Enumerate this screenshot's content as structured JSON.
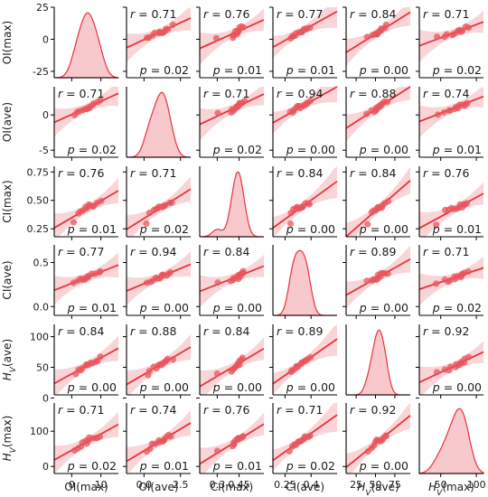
{
  "chart_data": {
    "type": "scatter",
    "variables": [
      {
        "key": "ol_max",
        "label": "OI(max)",
        "range": [
          -30,
          25
        ],
        "ticks": [
          -25,
          0,
          25
        ],
        "xrange": [
          -6,
          16
        ],
        "xticks": [
          0,
          10
        ],
        "tick_labels": [
          "-25",
          "0",
          "25"
        ],
        "xtick_labels": [
          "0",
          "10"
        ],
        "data": [
          1,
          2,
          3,
          4,
          5,
          5,
          6,
          6,
          7,
          8,
          9,
          10
        ]
      },
      {
        "key": "ol_ave",
        "label": "OI(ave)",
        "range": [
          -6,
          4
        ],
        "ticks": [
          -5,
          0
        ],
        "xrange": [
          -1.2,
          3.2
        ],
        "xticks": [
          0,
          2.5
        ],
        "tick_labels": [
          "-5",
          "0"
        ],
        "xtick_labels": [
          "0.0",
          "2.5"
        ],
        "data": [
          0.2,
          0.4,
          0.6,
          0.8,
          1.0,
          1.1,
          1.2,
          1.3,
          1.4,
          1.5,
          1.7,
          1.9
        ]
      },
      {
        "key": "cl_max",
        "label": "CI(max)",
        "range": [
          0.18,
          0.8
        ],
        "ticks": [
          0.25,
          0.5,
          0.75
        ],
        "xrange": [
          0.18,
          0.62
        ],
        "xticks": [
          0.3,
          0.45
        ],
        "tick_labels": [
          "0.25",
          "0.50",
          "0.75"
        ],
        "xtick_labels": [
          "0.3",
          "0.45"
        ],
        "data": [
          0.3,
          0.4,
          0.41,
          0.42,
          0.43,
          0.44,
          0.44,
          0.45,
          0.45,
          0.46,
          0.47,
          0.48
        ]
      },
      {
        "key": "cl_ave",
        "label": "CI(ave)",
        "range": [
          -0.1,
          0.7
        ],
        "ticks": [
          0.0,
          0.5
        ],
        "xrange": [
          0.18,
          0.55
        ],
        "xticks": [
          0.25,
          0.4
        ],
        "tick_labels": [
          "0.0",
          "0.5"
        ],
        "xtick_labels": [
          "0.25",
          "0.4"
        ],
        "data": [
          0.28,
          0.29,
          0.3,
          0.31,
          0.32,
          0.33,
          0.34,
          0.35,
          0.36,
          0.37,
          0.38,
          0.39
        ]
      },
      {
        "key": "hv_ave",
        "label": "HV(ave)",
        "range": [
          5,
          120
        ],
        "ticks": [
          0,
          50,
          100
        ],
        "xrange": [
          12,
          95
        ],
        "xticks": [
          25,
          50,
          75
        ],
        "tick_labels": [
          "0",
          "50",
          "100"
        ],
        "xtick_labels": [
          "25",
          "50",
          "75"
        ],
        "data": [
          40,
          45,
          48,
          50,
          52,
          53,
          55,
          56,
          58,
          60,
          62,
          65
        ]
      },
      {
        "key": "hv_max",
        "label": "HV(max)",
        "range": [
          -20,
          180
        ],
        "ticks": [
          0,
          100
        ],
        "xrange": [
          20,
          110
        ],
        "xticks": [
          50,
          100
        ],
        "tick_labels": [
          "0",
          "100"
        ],
        "xtick_labels": [
          "50",
          "100"
        ],
        "data": [
          45,
          55,
          60,
          65,
          70,
          72,
          75,
          78,
          80,
          82,
          85,
          88
        ]
      }
    ],
    "axis_labels": {
      "rows": [
        "OI(max)",
        "OI(ave)",
        "CI(max)",
        "CI(ave)",
        "HV(ave)",
        "HV(max)"
      ],
      "cols": [
        "OI(max)",
        "OI(ave)",
        "CI(max)",
        "CI(ave)",
        "HV(ave)",
        "HV(max)"
      ]
    },
    "r_values": [
      [
        null,
        0.71,
        0.76,
        0.77,
        0.84,
        0.71
      ],
      [
        0.71,
        null,
        0.71,
        0.94,
        0.88,
        0.74
      ],
      [
        0.76,
        0.71,
        null,
        0.84,
        0.84,
        0.76
      ],
      [
        0.77,
        0.94,
        0.84,
        null,
        0.89,
        0.71
      ],
      [
        0.84,
        0.88,
        0.84,
        0.89,
        null,
        0.92
      ],
      [
        0.71,
        0.74,
        0.76,
        0.71,
        0.92,
        null
      ]
    ],
    "p_values": [
      [
        null,
        0.02,
        0.01,
        0.01,
        0.0,
        0.02
      ],
      [
        0.02,
        null,
        0.02,
        0.0,
        0.0,
        0.01
      ],
      [
        0.01,
        0.02,
        null,
        0.0,
        0.0,
        0.01
      ],
      [
        0.01,
        0.0,
        0.0,
        null,
        0.0,
        0.02
      ],
      [
        0.0,
        0.0,
        0.0,
        0.0,
        null,
        0.0
      ],
      [
        0.02,
        0.01,
        0.01,
        0.02,
        0.0,
        null
      ]
    ],
    "diagonal": "kde",
    "grid": false
  },
  "colors": {
    "line": "#e8323c",
    "point": "#e8555c",
    "band": "#f6c3c6",
    "kde_fill": "#f7c9cc",
    "kde_line": "#e8323c"
  }
}
